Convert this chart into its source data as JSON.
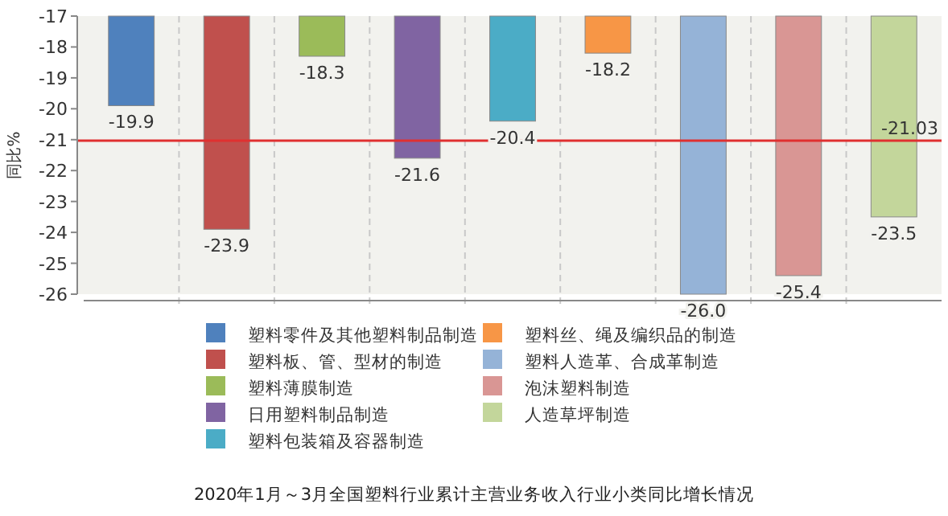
{
  "chart_data": {
    "type": "bar",
    "title": "2020年1月～3月全国塑料行业累计主营业务收入行业小类同比增长情况",
    "ylabel": "同比%",
    "categories": [
      null,
      null,
      null,
      null,
      null,
      null,
      null,
      null,
      null
    ],
    "series": [
      {
        "name": "塑料零件及其他塑料制品制造",
        "color": "#4f81bd",
        "values": [
          -19.9,
          null,
          null,
          null,
          null,
          null,
          null,
          null,
          null
        ],
        "value_labels": [
          "-19.9",
          null,
          null,
          null,
          null,
          null,
          null,
          null,
          null
        ]
      },
      {
        "name": "塑料板、管、型材的制造",
        "color": "#c0504d",
        "values": [
          null,
          -23.9,
          null,
          null,
          null,
          null,
          null,
          null,
          null
        ],
        "value_labels": [
          null,
          "-23.9",
          null,
          null,
          null,
          null,
          null,
          null,
          null
        ]
      },
      {
        "name": "塑料薄膜制造",
        "color": "#9bbb59",
        "values": [
          null,
          null,
          -18.3,
          null,
          null,
          null,
          null,
          null,
          null
        ],
        "value_labels": [
          null,
          null,
          "-18.3",
          null,
          null,
          null,
          null,
          null,
          null
        ]
      },
      {
        "name": "日用塑料制品制造",
        "color": "#8064a2",
        "values": [
          null,
          null,
          null,
          -21.6,
          null,
          null,
          null,
          null,
          null
        ],
        "value_labels": [
          null,
          null,
          null,
          "-21.6",
          null,
          null,
          null,
          null,
          null
        ]
      },
      {
        "name": "塑料包装箱及容器制造",
        "color": "#4bacc6",
        "values": [
          null,
          null,
          null,
          null,
          -20.4,
          null,
          null,
          null,
          null
        ],
        "value_labels": [
          null,
          null,
          null,
          null,
          "-20.4",
          null,
          null,
          null,
          null
        ]
      },
      {
        "name": "塑料丝、绳及编织品的制造",
        "color": "#f79646",
        "values": [
          null,
          null,
          null,
          null,
          null,
          -18.2,
          null,
          null,
          null
        ],
        "value_labels": [
          null,
          null,
          null,
          null,
          null,
          "-18.2",
          null,
          null,
          null
        ]
      },
      {
        "name": "塑料人造革、合成革制造",
        "color": "#95b3d7",
        "values": [
          null,
          null,
          null,
          null,
          null,
          null,
          -26.0,
          null,
          null
        ],
        "value_labels": [
          null,
          null,
          null,
          null,
          null,
          null,
          "-26.0",
          null,
          null
        ]
      },
      {
        "name": "泡沫塑料制造",
        "color": "#d99694",
        "values": [
          null,
          null,
          null,
          null,
          null,
          null,
          null,
          -25.4,
          null
        ],
        "value_labels": [
          null,
          null,
          null,
          null,
          null,
          null,
          null,
          "-25.4",
          null
        ]
      },
      {
        "name": "人造草坪制造",
        "color": "#c3d69b",
        "values": [
          null,
          null,
          null,
          null,
          null,
          null,
          null,
          null,
          -23.5
        ],
        "value_labels": [
          null,
          null,
          null,
          null,
          null,
          null,
          null,
          null,
          "-23.5"
        ]
      }
    ],
    "ylim": [
      -26,
      -17
    ],
    "yticks": [
      -17,
      -18,
      -19,
      -20,
      -21,
      -22,
      -23,
      -24,
      -25,
      -26
    ],
    "ref_lines": [
      {
        "axis": "y",
        "value": -21.03,
        "label": "-21.03",
        "color": "#e03030"
      }
    ],
    "grid": "x",
    "legend": "bottom",
    "tick_labels": "y"
  }
}
